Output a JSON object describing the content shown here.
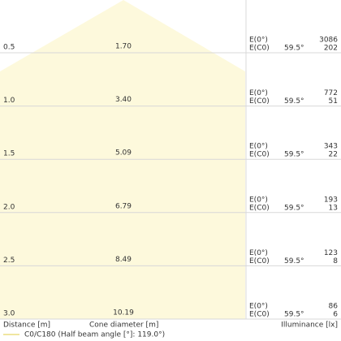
{
  "rows": [
    {
      "distance": "0.5",
      "diameter": "1.70",
      "e0_label": "E(0°)",
      "ec0_label": "E(C0)",
      "angle": "59.5°",
      "e0": "3086",
      "ec0": "202"
    },
    {
      "distance": "1.0",
      "diameter": "3.40",
      "e0_label": "E(0°)",
      "ec0_label": "E(C0)",
      "angle": "59.5°",
      "e0": "772",
      "ec0": "51"
    },
    {
      "distance": "1.5",
      "diameter": "5.09",
      "e0_label": "E(0°)",
      "ec0_label": "E(C0)",
      "angle": "59.5°",
      "e0": "343",
      "ec0": "22"
    },
    {
      "distance": "2.0",
      "diameter": "6.79",
      "e0_label": "E(0°)",
      "ec0_label": "E(C0)",
      "angle": "59.5°",
      "e0": "193",
      "ec0": "13"
    },
    {
      "distance": "2.5",
      "diameter": "8.49",
      "e0_label": "E(0°)",
      "ec0_label": "E(C0)",
      "angle": "59.5°",
      "e0": "123",
      "ec0": "8"
    },
    {
      "distance": "3.0",
      "diameter": "10.19",
      "e0_label": "E(0°)",
      "ec0_label": "E(C0)",
      "angle": "59.5°",
      "e0": "86",
      "ec0": "6"
    }
  ],
  "footer": {
    "distance": "Distance [m]",
    "diameter": "Cone diameter [m]",
    "illuminance": "Illuminance [lx]"
  },
  "legend": {
    "label": "C0/C180 (Half beam angle [°]: 119.0°)"
  }
}
